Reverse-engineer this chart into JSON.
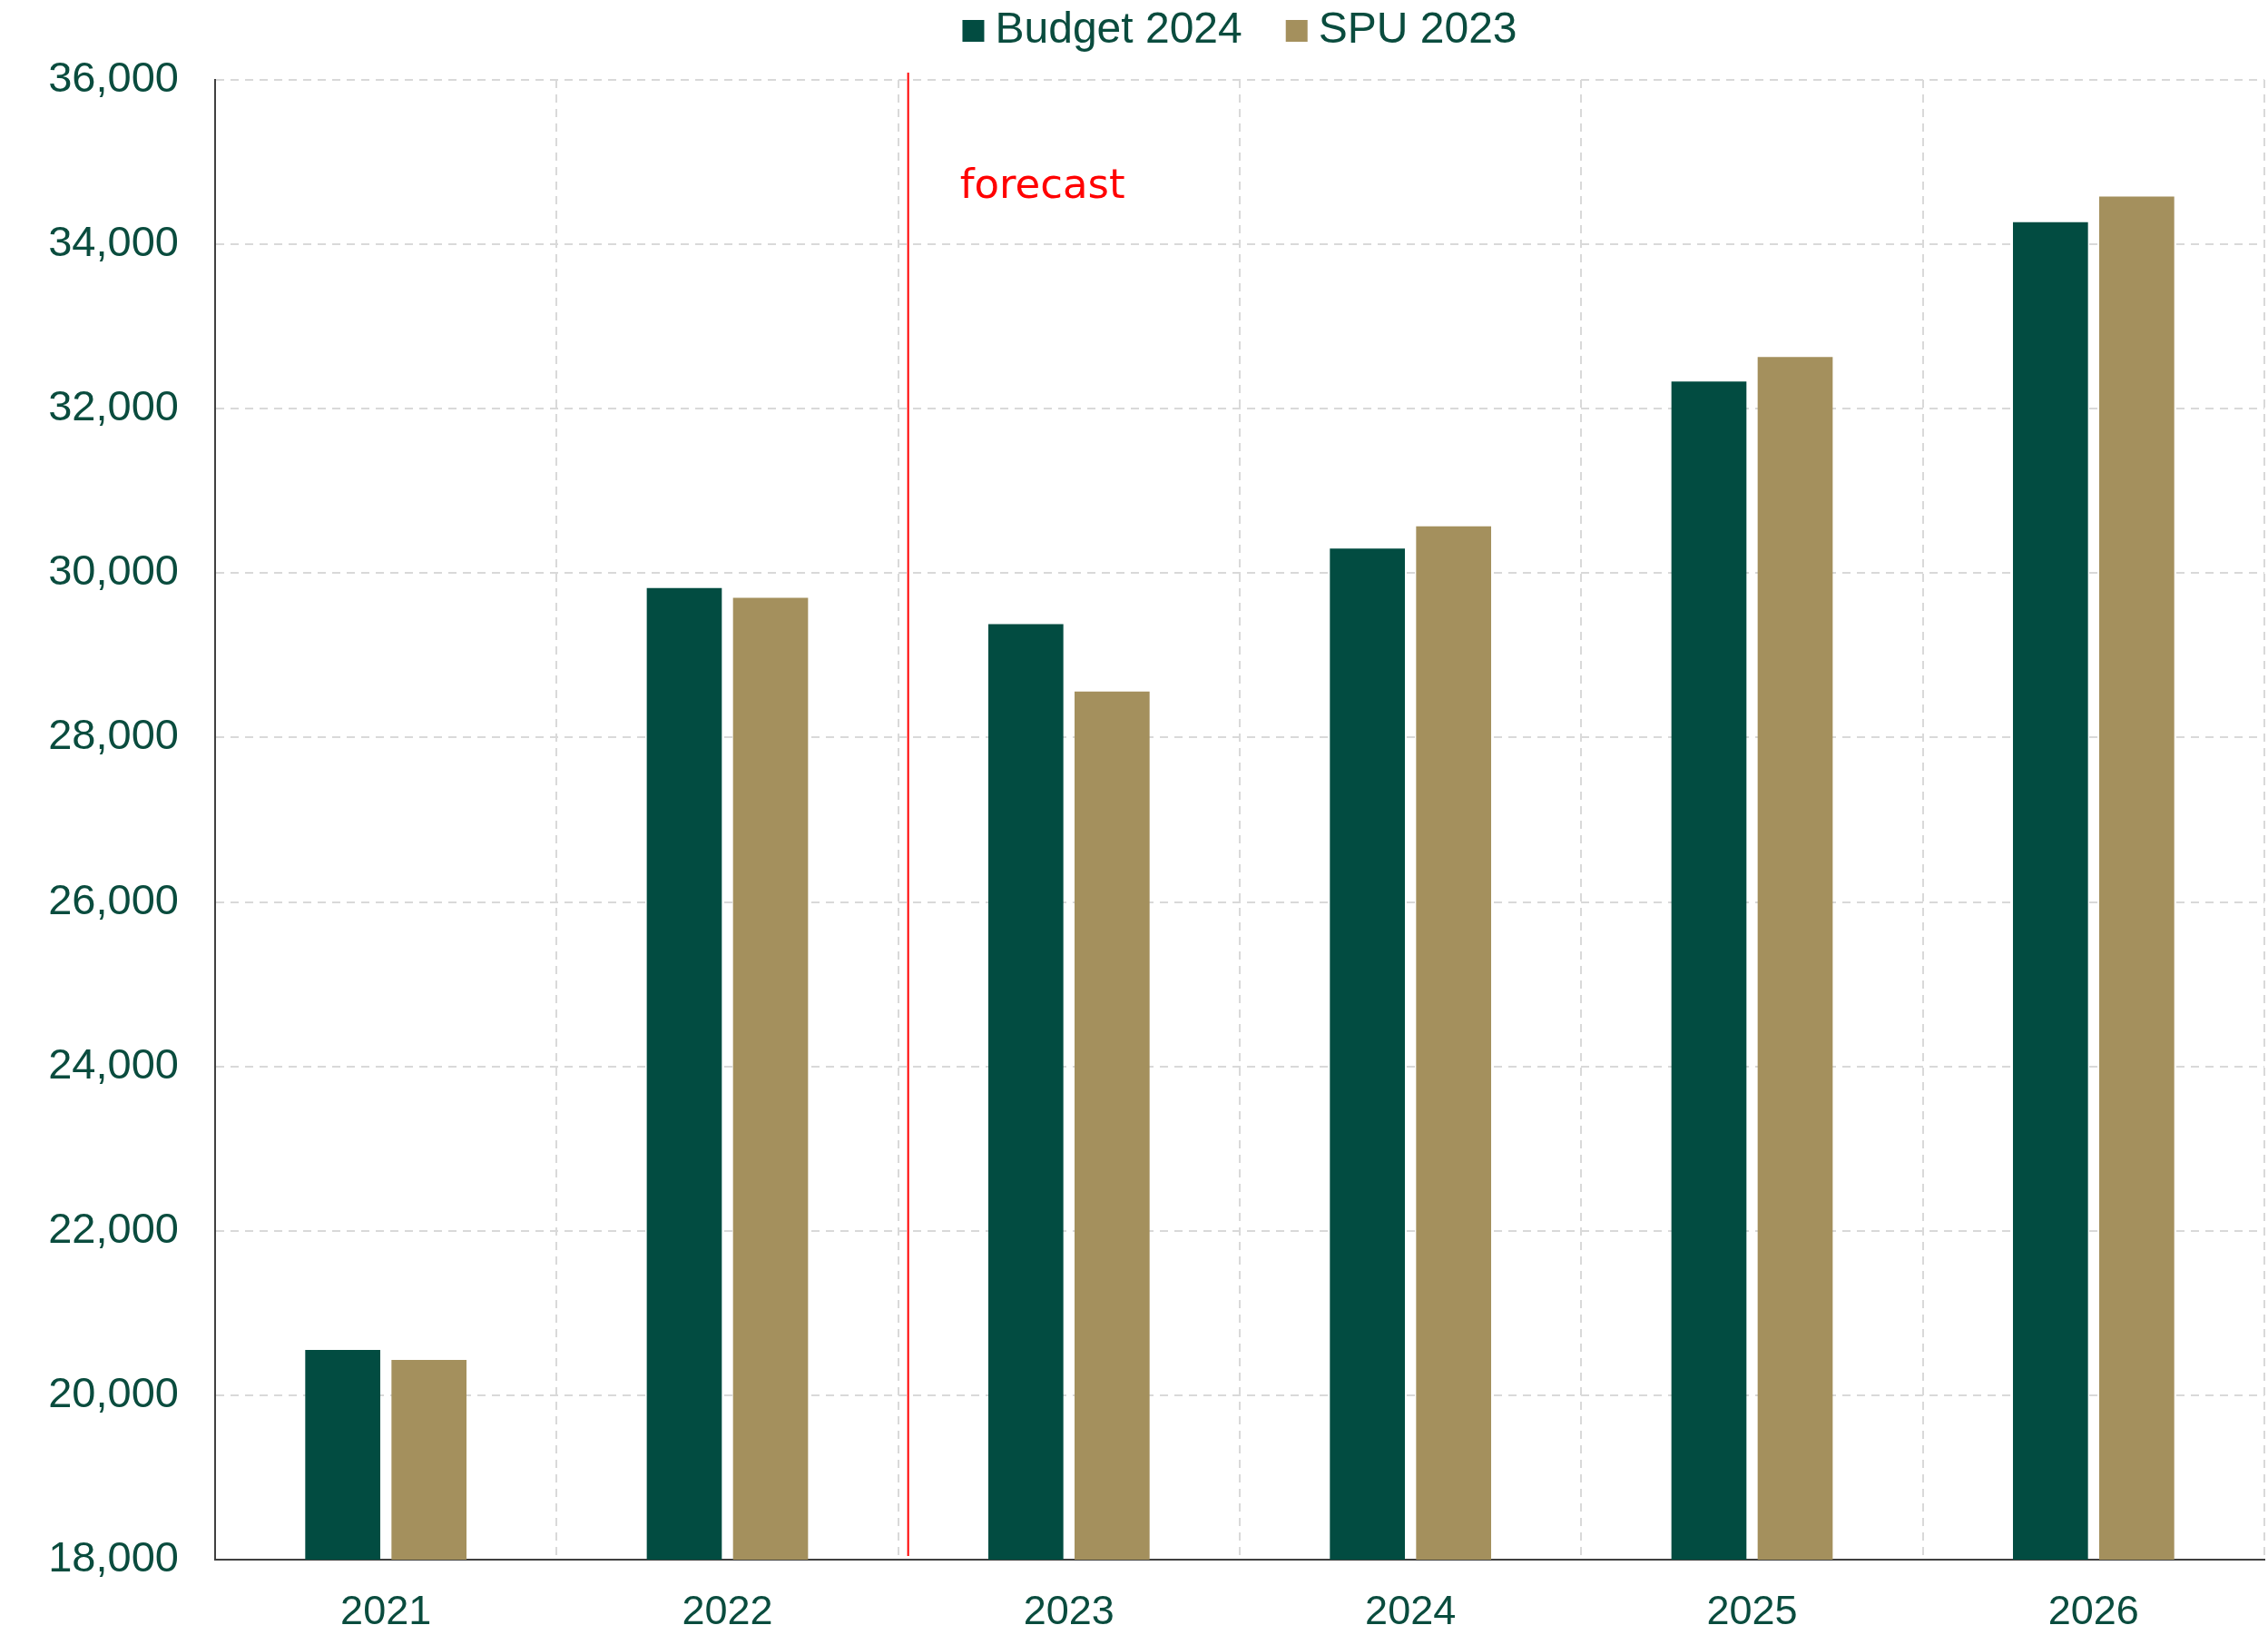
{
  "chart_data": {
    "type": "bar",
    "categories": [
      "2021",
      "2022",
      "2023",
      "2024",
      "2025",
      "2026"
    ],
    "series": [
      {
        "name": "Budget 2024",
        "color": "#024c41",
        "values": [
          20550,
          29820,
          29380,
          30300,
          32330,
          34270
        ]
      },
      {
        "name": "SPU 2023",
        "color": "#a4905d",
        "values": [
          20430,
          29700,
          28560,
          30570,
          32630,
          34580
        ]
      }
    ],
    "ylim": [
      18000,
      36000
    ],
    "yticks": [
      {
        "value": 18000,
        "label": "18,000"
      },
      {
        "value": 20000,
        "label": "20,000"
      },
      {
        "value": 22000,
        "label": "22,000"
      },
      {
        "value": 24000,
        "label": "24,000"
      },
      {
        "value": 26000,
        "label": "26,000"
      },
      {
        "value": 28000,
        "label": "28,000"
      },
      {
        "value": 30000,
        "label": "30,000"
      },
      {
        "value": 32000,
        "label": "32,000"
      },
      {
        "value": 34000,
        "label": "34,000"
      },
      {
        "value": 36000,
        "label": "36,000"
      }
    ],
    "grid": true,
    "legend": "top",
    "ref_lines": [
      {
        "axis": "x",
        "value": "2023",
        "label": "forecast",
        "color": "#ff0000"
      }
    ]
  }
}
